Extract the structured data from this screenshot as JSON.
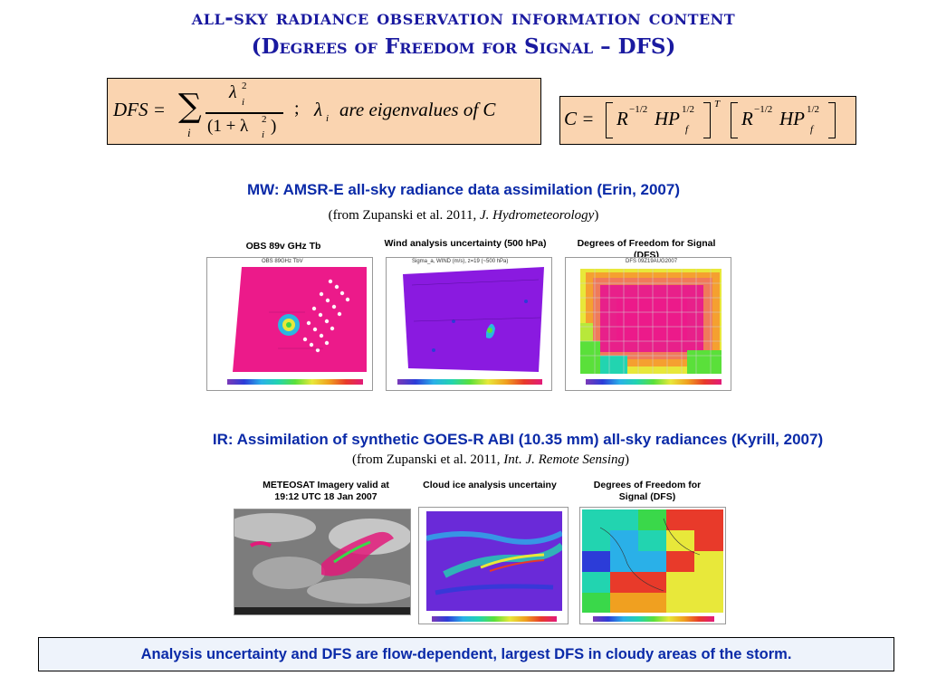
{
  "title": {
    "line1": "all-sky radiance observation information content",
    "line2": "(Degrees of Freedom for Signal – DFS)"
  },
  "formula_dfs": {
    "lhs": "DFS =",
    "sum": "∑",
    "sum_index": "i",
    "numerator": "λ",
    "numerator_sub": "i",
    "numerator_sup": "2",
    "denominator": "(1 + λ",
    "denominator_sub": "i",
    "denominator_sup": "2",
    "denominator_close": ")",
    "separator": ";",
    "eig_symbol": "λ",
    "eig_sub": "i",
    "eig_text": "are eigenvalues of C"
  },
  "formula_c": {
    "lhs": "C =",
    "r": "R",
    "r_exp": "−1/2",
    "hp": "HP",
    "hp_sup": "1/2",
    "hp_sub": "f",
    "transpose": "T"
  },
  "mw_section": {
    "heading": "MW: AMSR-E all-sky radiance data assimilation (Erin, 2007)",
    "citation_plain": "(from Zupanski et al. 2011, ",
    "citation_italic": "J. Hydrometeorology",
    "citation_end": ")",
    "panels": [
      {
        "caption": "OBS 89v GHz Tb",
        "map_title": "OBS 89GHz TbV"
      },
      {
        "caption": "Wind analysis uncertainty (500 hPa)",
        "map_title": "Sigma_a, WIND (m/s), z=19 (~500 hPa)"
      },
      {
        "caption": "Degrees of Freedom for Signal (DFS)",
        "map_title": "DFS 09Z19AUG2007"
      }
    ]
  },
  "ir_section": {
    "heading": "IR: Assimilation of synthetic GOES-R ABI (10.35 mm) all-sky radiances (Kyrill, 2007)",
    "citation_plain": "(from Zupanski et al. 2011, ",
    "citation_italic": "Int. J. Remote Sensing",
    "citation_end": ")",
    "panels": [
      {
        "caption": "METEOSAT Imagery valid at 19:12 UTC 18 Jan 2007"
      },
      {
        "caption": "Cloud ice analysis uncertainy"
      },
      {
        "caption": "Degrees of Freedom for Signal (DFS)"
      }
    ]
  },
  "footer": "Analysis uncertainty and DFS are flow-dependent, largest DFS in cloudy areas of the storm.",
  "colors": {
    "title": "#1a1aa0",
    "heading": "#0a2aa8",
    "formula_box": "#fad4b0",
    "obs_background": "#ec1a8a",
    "wind_background": "#8a1ae0"
  }
}
